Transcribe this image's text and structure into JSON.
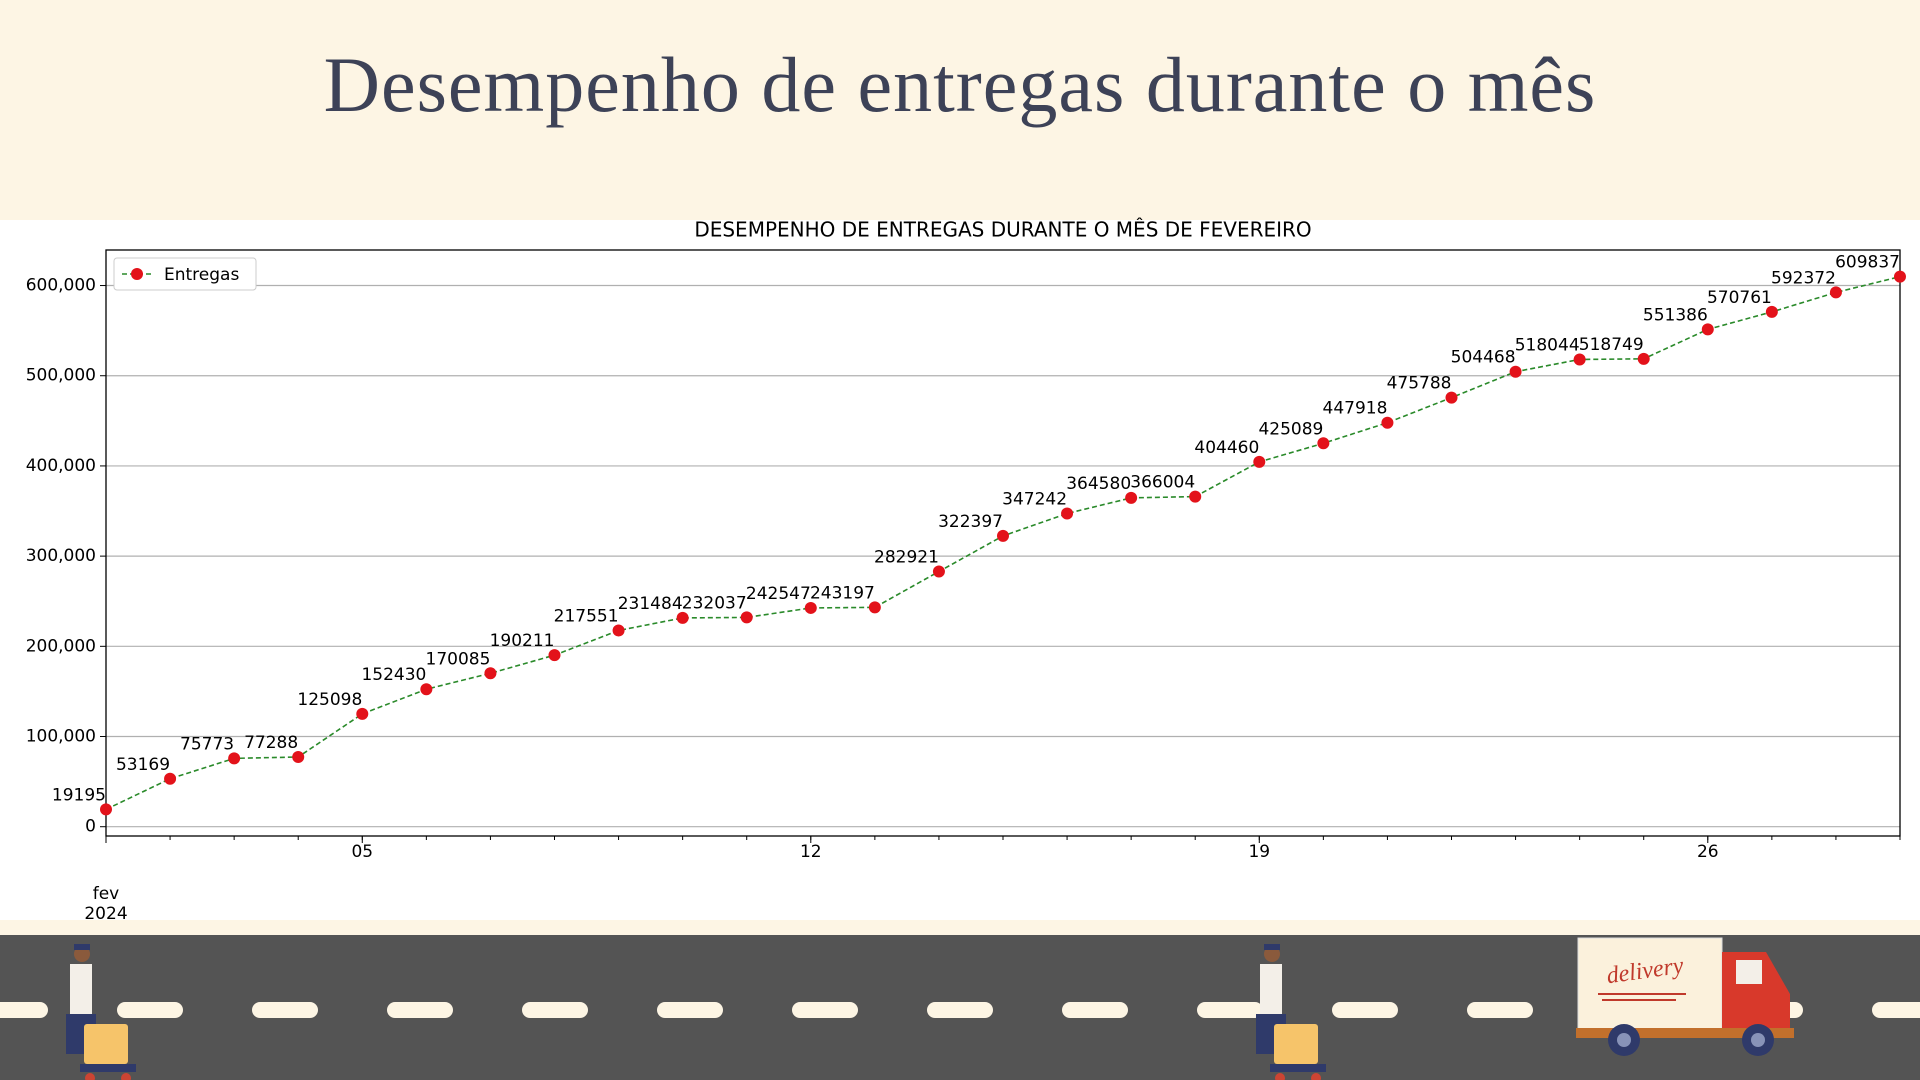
{
  "header": {
    "title": "Desempenho de entregas durante o mês"
  },
  "chart_data": {
    "type": "line",
    "title": "DESEMPENHO DE ENTREGAS DURANTE O MÊS DE FEVEREIRO",
    "x": [
      "2024-02-01",
      "2024-02-02",
      "2024-02-03",
      "2024-02-04",
      "2024-02-05",
      "2024-02-06",
      "2024-02-07",
      "2024-02-08",
      "2024-02-09",
      "2024-02-10",
      "2024-02-11",
      "2024-02-12",
      "2024-02-13",
      "2024-02-14",
      "2024-02-15",
      "2024-02-16",
      "2024-02-17",
      "2024-02-18",
      "2024-02-19",
      "2024-02-20",
      "2024-02-21",
      "2024-02-22",
      "2024-02-23",
      "2024-02-24",
      "2024-02-25",
      "2024-02-26",
      "2024-02-27",
      "2024-02-28",
      "2024-02-29"
    ],
    "series": [
      {
        "name": "Entregas",
        "color": "#2a8a2a",
        "marker_color": "#e3121a",
        "values": [
          19195,
          53169,
          75773,
          77288,
          125098,
          152430,
          170085,
          190211,
          217551,
          231484,
          232037,
          242547,
          243197,
          282921,
          322397,
          347242,
          364580,
          366004,
          404460,
          425089,
          447918,
          475788,
          504468,
          518044,
          518749,
          551386,
          570761,
          592372,
          609837
        ]
      }
    ],
    "xlim": [
      "2024-02-01",
      "2024-02-29"
    ],
    "xticks": [
      {
        "value": "2024-02-01",
        "label": "fev\n2024"
      },
      {
        "value": "2024-02-05",
        "label": "05"
      },
      {
        "value": "2024-02-12",
        "label": "12"
      },
      {
        "value": "2024-02-19",
        "label": "19"
      },
      {
        "value": "2024-02-26",
        "label": "26"
      }
    ],
    "ylim": [
      -10300,
      639400
    ],
    "yticks": [
      0,
      {
        "value": 100000,
        "label": "100,000"
      },
      {
        "value": 200000,
        "label": "200,000"
      },
      {
        "value": 300000,
        "label": "300,000"
      },
      {
        "value": 400000,
        "label": "400,000"
      },
      {
        "value": 500000,
        "label": "500,000"
      },
      {
        "value": 600000,
        "label": "600,000"
      }
    ],
    "grid": "y",
    "legend": "upper left",
    "data_labels": true
  },
  "footer": {
    "truck_label": "delivery"
  }
}
